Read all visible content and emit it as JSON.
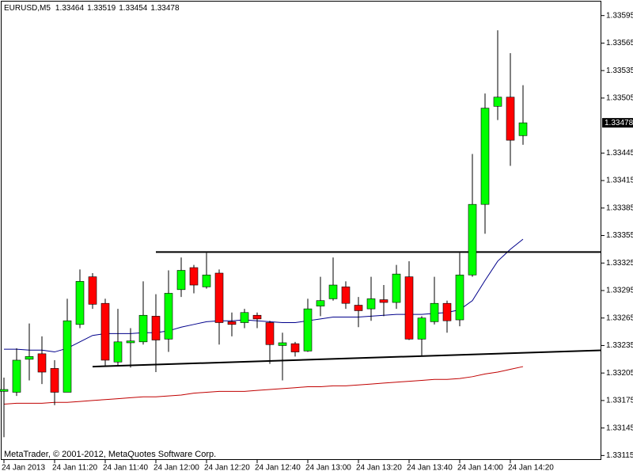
{
  "chart_data": {
    "type": "candlestick",
    "symbol": "EURUSD,M5",
    "footer": "MetaTrader, © 2001-2012, MetaQuotes Software Corp.",
    "categories": [
      "24 Jan 2013",
      null,
      null,
      null,
      "24 Jan 11:20",
      null,
      null,
      null,
      "24 Jan 11:40",
      null,
      null,
      null,
      "24 Jan 12:00",
      null,
      null,
      null,
      "24 Jan 12:20",
      null,
      null,
      null,
      "24 Jan 12:40",
      null,
      null,
      null,
      "24 Jan 13:00",
      null,
      null,
      null,
      "24 Jan 13:20",
      null,
      null,
      null,
      "24 Jan 13:40",
      null,
      null,
      null,
      "24 Jan 14:00",
      null,
      null,
      null,
      "24 Jan 14:20",
      null
    ],
    "open": [
      1.33185,
      1.33184,
      1.3322,
      1.33226,
      1.3321,
      1.33184,
      1.33258,
      1.3331,
      1.33281,
      1.33217,
      1.33238,
      1.33239,
      1.33267,
      1.33242,
      1.33296,
      1.3332,
      1.33299,
      1.33314,
      1.33261,
      1.3326,
      1.33268,
      1.3326,
      1.33235,
      1.33237,
      1.33229,
      1.33278,
      1.33286,
      1.33299,
      1.33279,
      1.33275,
      1.33285,
      1.33282,
      1.3331,
      1.33242,
      1.33261,
      1.33281,
      1.33263,
      1.33312,
      1.33389,
      1.33496,
      1.33506,
      1.33464
    ],
    "high": [
      1.332,
      1.33232,
      1.33259,
      1.33245,
      1.33219,
      1.33286,
      1.33318,
      1.33314,
      1.33286,
      1.33275,
      1.33254,
      1.33305,
      1.33291,
      1.33317,
      1.33331,
      1.33323,
      1.33336,
      1.33318,
      1.33271,
      1.33275,
      1.33271,
      1.33262,
      1.33249,
      1.33239,
      1.33286,
      1.3331,
      1.33331,
      1.33305,
      1.33288,
      1.3331,
      1.33301,
      1.33323,
      1.33327,
      1.33267,
      1.3331,
      1.33284,
      1.33336,
      1.33444,
      1.3351,
      1.33579,
      1.33554,
      1.33519
    ],
    "low": [
      1.33135,
      1.3318,
      1.33197,
      1.33193,
      1.3317,
      1.33184,
      1.33254,
      1.33275,
      1.33213,
      1.33213,
      1.33211,
      1.33236,
      1.33206,
      1.33228,
      1.33288,
      1.33292,
      1.33297,
      1.33236,
      1.33245,
      1.33254,
      1.33254,
      1.33215,
      1.33197,
      1.33223,
      1.33228,
      1.33267,
      1.33284,
      1.33275,
      1.33255,
      1.33262,
      1.33267,
      1.33275,
      1.33241,
      1.33223,
      1.33258,
      1.33249,
      1.33256,
      1.3331,
      1.33357,
      1.33481,
      1.33431,
      1.33454
    ],
    "close": [
      1.33187,
      1.33219,
      1.33223,
      1.33206,
      1.33184,
      1.33262,
      1.33305,
      1.3328,
      1.33219,
      1.33239,
      1.3324,
      1.33268,
      1.33241,
      1.33292,
      1.33317,
      1.33301,
      1.33312,
      1.3326,
      1.33258,
      1.33271,
      1.33264,
      1.33236,
      1.33238,
      1.33228,
      1.33275,
      1.33284,
      1.33301,
      1.33281,
      1.33273,
      1.33286,
      1.33282,
      1.33313,
      1.33242,
      1.33265,
      1.33281,
      1.33262,
      1.33312,
      1.33389,
      1.33494,
      1.33506,
      1.33459,
      1.33478
    ],
    "up_color": "#00ff00",
    "down_color": "#ff0000",
    "indicators": [
      {
        "color": "#00008b",
        "values": [
          1.33231,
          1.33231,
          1.3323,
          1.3323,
          1.33228,
          1.33232,
          1.33239,
          1.33246,
          1.33248,
          1.33248,
          1.33248,
          1.33249,
          1.33249,
          1.33251,
          1.33255,
          1.33258,
          1.33261,
          1.33262,
          1.33262,
          1.33263,
          1.33262,
          1.33261,
          1.3326,
          1.3326,
          1.33262,
          1.33264,
          1.33266,
          1.33266,
          1.33266,
          1.33267,
          1.33268,
          1.33269,
          1.33269,
          1.33269,
          1.3327,
          1.33271,
          1.33274,
          1.33284,
          1.33306,
          1.33327,
          1.3334,
          1.33351
        ]
      },
      {
        "color": "#c00000",
        "values": [
          1.33171,
          1.33172,
          1.33172,
          1.33172,
          1.33173,
          1.33173,
          1.33174,
          1.33175,
          1.33176,
          1.33177,
          1.33178,
          1.33179,
          1.33179,
          1.3318,
          1.33181,
          1.33183,
          1.33184,
          1.33185,
          1.33185,
          1.33185,
          1.33186,
          1.33187,
          1.33188,
          1.33189,
          1.3319,
          1.3319,
          1.33191,
          1.33191,
          1.33192,
          1.33193,
          1.33194,
          1.33195,
          1.33196,
          1.33197,
          1.33198,
          1.33198,
          1.33199,
          1.33201,
          1.33204,
          1.33206,
          1.33209,
          1.33212
        ]
      }
    ],
    "trendlines": [
      {
        "x": [
          12,
          41
        ],
        "values": [
          1.33337,
          1.33337
        ]
      },
      {
        "x": [
          7,
          41
        ],
        "values": [
          1.33212,
          1.33227
        ]
      }
    ],
    "ylim": [
      1.33111,
      1.33612
    ],
    "yticks": [
      1.33595,
      1.33565,
      1.33535,
      1.33505,
      1.33445,
      1.33415,
      1.33385,
      1.33355,
      1.33325,
      1.33295,
      1.33265,
      1.33235,
      1.33205,
      1.33175,
      1.33145,
      1.33115
    ]
  }
}
